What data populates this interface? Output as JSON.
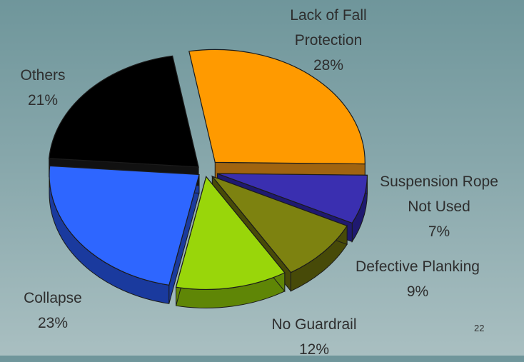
{
  "chart_data": {
    "type": "pie",
    "style": "3d exploded",
    "slices": [
      {
        "name": "Lack of Fall Protection",
        "lines": [
          "Lack of Fall",
          "Protection"
        ],
        "value": 28,
        "label": "28%",
        "color": "#ff9a00",
        "side_color": "#a06410"
      },
      {
        "name": "Suspension Rope Not Used",
        "lines": [
          "Suspension Rope",
          "Not Used"
        ],
        "value": 7,
        "label": "7%",
        "color": "#3a2fb0",
        "side_color": "#1f1970"
      },
      {
        "name": "Defective Planking",
        "lines": [
          "Defective Planking"
        ],
        "value": 9,
        "label": "9%",
        "color": "#7d8210",
        "side_color": "#474a08"
      },
      {
        "name": "No Guardrail",
        "lines": [
          "No Guardrail"
        ],
        "value": 12,
        "label": "12%",
        "color": "#99d60a",
        "side_color": "#5f8606"
      },
      {
        "name": "Collapse",
        "lines": [
          "Collapse"
        ],
        "value": 23,
        "label": "23%",
        "color": "#2e66ff",
        "side_color": "#1a3a9e"
      },
      {
        "name": "Others",
        "lines": [
          "Others"
        ],
        "value": 21,
        "label": "21%",
        "color": "#000000",
        "side_color": "#111111"
      }
    ]
  },
  "page_number": "22"
}
